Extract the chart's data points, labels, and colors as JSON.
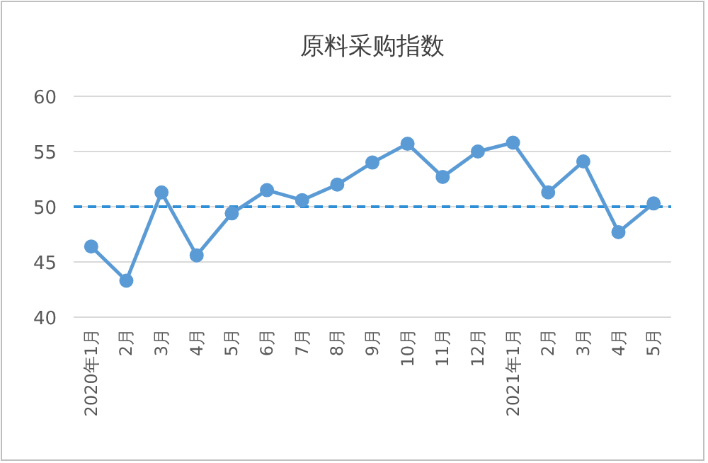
{
  "chart_data": {
    "type": "line",
    "title": "原料采购指数",
    "categories": [
      "2020年1月",
      "2月",
      "3月",
      "4月",
      "5月",
      "6月",
      "7月",
      "8月",
      "9月",
      "10月",
      "11月",
      "12月",
      "2021年1月",
      "2月",
      "3月",
      "4月",
      "5月"
    ],
    "series": [
      {
        "color": "#5b9bd5",
        "values": [
          46.4,
          43.3,
          51.3,
          45.6,
          49.4,
          51.5,
          50.6,
          52.0,
          54.0,
          55.7,
          52.7,
          55.0,
          55.8,
          51.3,
          54.1,
          47.7,
          50.3
        ]
      }
    ],
    "ylim": [
      40,
      60
    ],
    "yticks": [
      40,
      45,
      50,
      55,
      60
    ],
    "grid": "y",
    "marker": "circle",
    "line_style": "solid",
    "ref_lines": [
      {
        "axis": "y",
        "value": 50,
        "color": "#2e8fd6",
        "line_style": "dashed"
      }
    ]
  }
}
